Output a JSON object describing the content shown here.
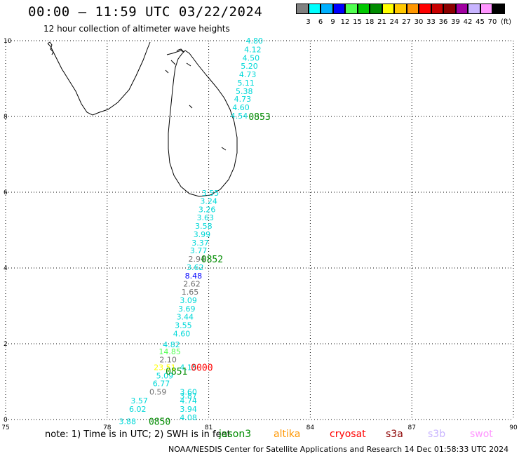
{
  "header": {
    "title": "00:00 – 11:59 UTC 03/22/2024",
    "subtitle": "12 hour collection of altimeter wave heights"
  },
  "colorbar": {
    "unit_label": "(ft)",
    "bins": [
      {
        "label": "3",
        "color": "#808080"
      },
      {
        "label": "6",
        "color": "#00ffff"
      },
      {
        "label": "9",
        "color": "#00b0ff"
      },
      {
        "label": "12",
        "color": "#0000ff"
      },
      {
        "label": "15",
        "color": "#50ff50"
      },
      {
        "label": "18",
        "color": "#00c800"
      },
      {
        "label": "21",
        "color": "#008c00"
      },
      {
        "label": "24",
        "color": "#ffff00"
      },
      {
        "label": "27",
        "color": "#ffc800"
      },
      {
        "label": "30",
        "color": "#ff9600"
      },
      {
        "label": "33",
        "color": "#ff0000"
      },
      {
        "label": "36",
        "color": "#c80000"
      },
      {
        "label": "39",
        "color": "#8c0000"
      },
      {
        "label": "42",
        "color": "#a000a0"
      },
      {
        "label": "45",
        "color": "#c8b4ff"
      },
      {
        "label": "70",
        "color": "#ff96ff"
      },
      {
        "label": "",
        "color": "#000000"
      }
    ]
  },
  "map": {
    "lon_range": [
      75,
      90
    ],
    "lat_range": [
      0,
      10
    ],
    "x_tick_labels": [
      "75",
      "78",
      "81",
      "84",
      "87",
      "90"
    ],
    "y_tick_labels": [
      "0",
      "2",
      "4",
      "6",
      "8",
      "10"
    ],
    "grid": "dotted"
  },
  "chart_data": {
    "type": "scatter",
    "x_axis": {
      "range": [
        75,
        90
      ],
      "ticks": [
        75,
        78,
        81,
        84,
        87,
        90
      ]
    },
    "y_axis": {
      "range": [
        0,
        10
      ],
      "ticks": [
        0,
        2,
        4,
        6,
        8,
        10
      ]
    },
    "points": [
      {
        "lon": 82.35,
        "lat": 10.0,
        "text": "4.80",
        "color": "#00d8d8"
      },
      {
        "lon": 82.3,
        "lat": 9.77,
        "text": "4.12",
        "color": "#00d8d8"
      },
      {
        "lon": 82.25,
        "lat": 9.55,
        "text": "4.50",
        "color": "#00d8d8"
      },
      {
        "lon": 82.2,
        "lat": 9.33,
        "text": "5.20",
        "color": "#00d8d8"
      },
      {
        "lon": 82.15,
        "lat": 9.11,
        "text": "4.73",
        "color": "#00d8d8"
      },
      {
        "lon": 82.1,
        "lat": 8.89,
        "text": "5.11",
        "color": "#00d8d8"
      },
      {
        "lon": 82.05,
        "lat": 8.67,
        "text": "5.38",
        "color": "#00d8d8"
      },
      {
        "lon": 82.0,
        "lat": 8.46,
        "text": "4.73",
        "color": "#00d8d8"
      },
      {
        "lon": 81.95,
        "lat": 8.24,
        "text": "4.60",
        "color": "#00d8d8"
      },
      {
        "lon": 81.9,
        "lat": 8.02,
        "text": "4.54",
        "color": "#00d8d8"
      },
      {
        "lon": 81.05,
        "lat": 5.98,
        "text": "3.55",
        "color": "#00d8d8"
      },
      {
        "lon": 81.0,
        "lat": 5.77,
        "text": "3.24",
        "color": "#00d8d8"
      },
      {
        "lon": 80.95,
        "lat": 5.55,
        "text": "3.26",
        "color": "#00d8d8"
      },
      {
        "lon": 80.9,
        "lat": 5.33,
        "text": "3.63",
        "color": "#00d8d8"
      },
      {
        "lon": 80.85,
        "lat": 5.11,
        "text": "3.58",
        "color": "#00d8d8"
      },
      {
        "lon": 80.8,
        "lat": 4.89,
        "text": "3.99",
        "color": "#00d8d8"
      },
      {
        "lon": 80.75,
        "lat": 4.67,
        "text": "3.37",
        "color": "#00d8d8"
      },
      {
        "lon": 80.7,
        "lat": 4.46,
        "text": "3.77",
        "color": "#00d8d8"
      },
      {
        "lon": 80.65,
        "lat": 4.24,
        "text": "2.94",
        "color": "#707070"
      },
      {
        "lon": 80.6,
        "lat": 4.02,
        "text": "3.62",
        "color": "#00d8d8"
      },
      {
        "lon": 80.55,
        "lat": 3.8,
        "text": "8.48",
        "color": "#0000ff"
      },
      {
        "lon": 80.5,
        "lat": 3.58,
        "text": "2.62",
        "color": "#707070"
      },
      {
        "lon": 80.45,
        "lat": 3.37,
        "text": "1.65",
        "color": "#707070"
      },
      {
        "lon": 80.4,
        "lat": 3.15,
        "text": "3.09",
        "color": "#00d8d8"
      },
      {
        "lon": 80.35,
        "lat": 2.93,
        "text": "3.69",
        "color": "#00d8d8"
      },
      {
        "lon": 80.3,
        "lat": 2.71,
        "text": "3.44",
        "color": "#00d8d8"
      },
      {
        "lon": 80.25,
        "lat": 2.49,
        "text": "3.55",
        "color": "#00d8d8"
      },
      {
        "lon": 80.2,
        "lat": 2.27,
        "text": "4.60",
        "color": "#00d8d8"
      },
      {
        "lon": 79.9,
        "lat": 1.98,
        "text": "4.82",
        "color": "#00d8d8"
      },
      {
        "lon": 79.85,
        "lat": 1.8,
        "text": "14.85",
        "color": "#50ff50"
      },
      {
        "lon": 79.8,
        "lat": 1.58,
        "text": "2.10",
        "color": "#707070"
      },
      {
        "lon": 79.7,
        "lat": 1.38,
        "text": "23.51",
        "color": "#ffff00"
      },
      {
        "lon": 79.7,
        "lat": 1.16,
        "text": "5.09",
        "color": "#00d8d8"
      },
      {
        "lon": 79.6,
        "lat": 0.95,
        "text": "6.77",
        "color": "#00d8d8"
      },
      {
        "lon": 79.5,
        "lat": 0.73,
        "text": "0.59",
        "color": "#707070"
      },
      {
        "lon": 80.4,
        "lat": 1.38,
        "text": "4.15",
        "color": "#00d8d8"
      },
      {
        "lon": 80.4,
        "lat": 0.73,
        "text": "3.60",
        "color": "#00d8d8"
      },
      {
        "lon": 80.4,
        "lat": 0.63,
        "text": "3.87",
        "color": "#00d8d8"
      },
      {
        "lon": 78.95,
        "lat": 0.5,
        "text": "3.57",
        "color": "#00d8d8"
      },
      {
        "lon": 78.9,
        "lat": 0.28,
        "text": "6.02",
        "color": "#00d8d8"
      },
      {
        "lon": 80.4,
        "lat": 0.5,
        "text": "4.74",
        "color": "#00d8d8"
      },
      {
        "lon": 80.4,
        "lat": 0.28,
        "text": "3.94",
        "color": "#00d8d8"
      },
      {
        "lon": 80.4,
        "lat": 0.06,
        "text": "4.08",
        "color": "#00d8d8"
      },
      {
        "lon": 78.6,
        "lat": -0.05,
        "text": "3.88",
        "color": "#00d8d8"
      }
    ],
    "times": [
      {
        "lon": 82.5,
        "lat": 8.0,
        "text": "0853",
        "color": "#008c00"
      },
      {
        "lon": 81.1,
        "lat": 4.24,
        "text": "0852",
        "color": "#008c00"
      },
      {
        "lon": 80.05,
        "lat": 1.28,
        "text": "0851",
        "color": "#008c00"
      },
      {
        "lon": 80.8,
        "lat": 1.38,
        "text": "0000",
        "color": "#ff0000"
      },
      {
        "lon": 79.55,
        "lat": -0.05,
        "text": "0850",
        "color": "#008c00"
      }
    ]
  },
  "footer": {
    "note": "note:  1) Time is in UTC;  2) SWH is in feet",
    "satellites": [
      {
        "name": "jason3",
        "color": "#008c00"
      },
      {
        "name": "altika",
        "color": "#ff9600"
      },
      {
        "name": "cryosat",
        "color": "#ff0000"
      },
      {
        "name": "s3a",
        "color": "#8c0000"
      },
      {
        "name": "s3b",
        "color": "#c8b4ff"
      },
      {
        "name": "swot",
        "color": "#ff96ff"
      }
    ],
    "credit": "NOAA/NESDIS Center for Satellite Applications and Research    14 Dec 01:58:33 UTC 2024"
  }
}
